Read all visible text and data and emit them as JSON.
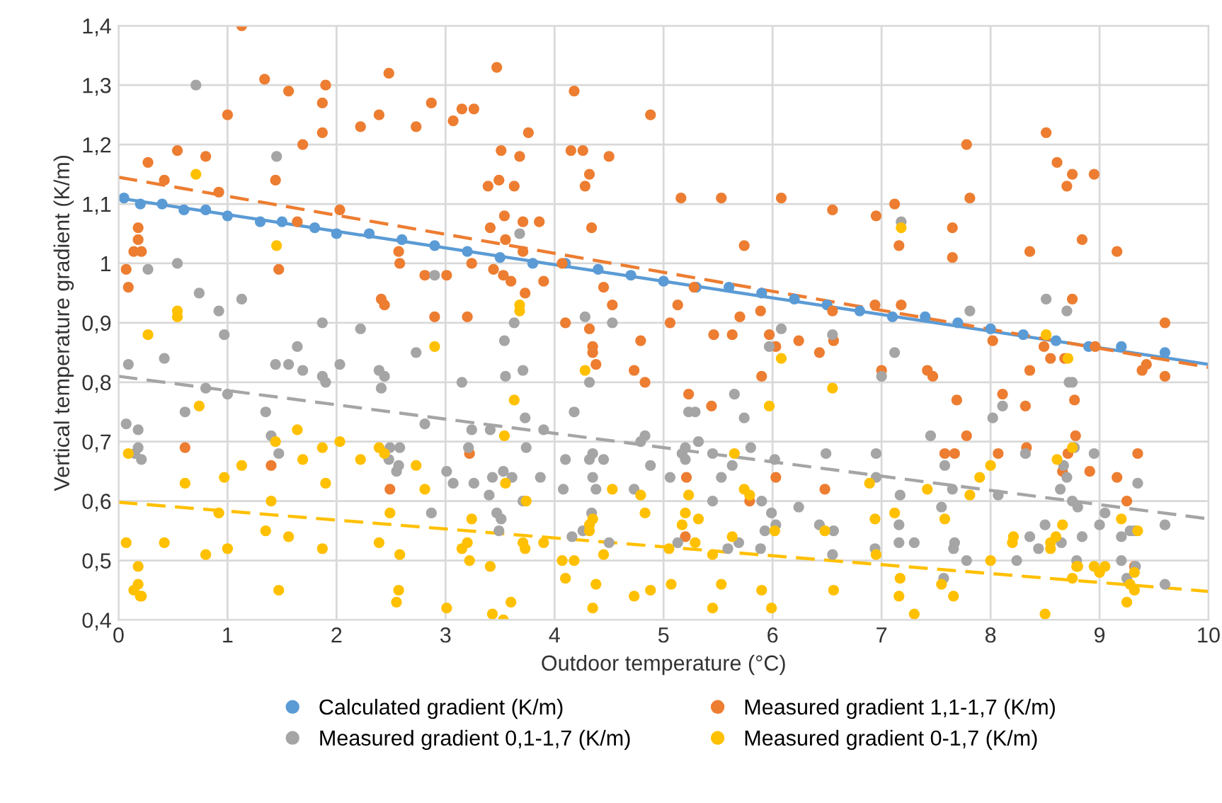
{
  "chart_data": {
    "type": "scatter",
    "xlabel": "Outdoor temperature (°C)",
    "ylabel": "Vertical temperature gradient (K/m)",
    "xlim": [
      0,
      10
    ],
    "ylim": [
      0.4,
      1.4
    ],
    "xticks": [
      0,
      1,
      2,
      3,
      4,
      5,
      6,
      7,
      8,
      9,
      10
    ],
    "yticks": [
      {
        "value": 0.4,
        "label": "0,4"
      },
      {
        "value": 0.5,
        "label": "0,5"
      },
      {
        "value": 0.6,
        "label": "0,6"
      },
      {
        "value": 0.7,
        "label": "0,7"
      },
      {
        "value": 0.8,
        "label": "0,8"
      },
      {
        "value": 0.9,
        "label": "0,9"
      },
      1,
      {
        "value": 1.1,
        "label": "1,1"
      },
      {
        "value": 1.2,
        "label": "1,2"
      },
      {
        "value": 1.3,
        "label": "1,3"
      },
      {
        "value": 1.4,
        "label": "1,4"
      }
    ],
    "grid": true,
    "legend": "bottom",
    "marker": "circle",
    "series": [
      {
        "name": "Calculated gradient (K/m)",
        "color": "#5b9bd5",
        "x": [
          0.05,
          0.2,
          0.4,
          0.6,
          0.8,
          1.0,
          1.3,
          1.5,
          1.8,
          2.0,
          2.3,
          2.6,
          2.9,
          3.2,
          3.5,
          3.8,
          4.1,
          4.4,
          4.7,
          5.0,
          5.3,
          5.6,
          5.9,
          6.2,
          6.5,
          6.8,
          7.1,
          7.4,
          7.7,
          8.0,
          8.3,
          8.6,
          8.9,
          9.2,
          9.6
        ],
        "values": [
          1.11,
          1.1,
          1.1,
          1.09,
          1.09,
          1.08,
          1.07,
          1.07,
          1.06,
          1.05,
          1.05,
          1.04,
          1.03,
          1.02,
          1.01,
          1.0,
          1.0,
          0.99,
          0.98,
          0.97,
          0.96,
          0.96,
          0.95,
          0.94,
          0.93,
          0.92,
          0.91,
          0.91,
          0.9,
          0.89,
          0.88,
          0.87,
          0.86,
          0.86,
          0.85
        ]
      },
      {
        "name": "Measured gradient 1,1-1,7 (K/m)",
        "color": "#ed7d31",
        "x": [
          1.13,
          1.34,
          1.56,
          1.9,
          1.87,
          1.0,
          2.48,
          3.47,
          4.18,
          4.88,
          2.87,
          3.15,
          3.26,
          3.07,
          2.39,
          2.22,
          2.73,
          1.87,
          1.69,
          3.76,
          3.51,
          3.68,
          4.15,
          4.26,
          4.5,
          4.32,
          4.28,
          0.54,
          0.8,
          0.27,
          0.42,
          1.44,
          0.92,
          3.39,
          3.49,
          3.63,
          2.03,
          3.54,
          3.71,
          3.86,
          4.34,
          3.41,
          3.55,
          0.18,
          0.18,
          0.14,
          0.21,
          2.57,
          2.58,
          1.47,
          0.07,
          0.09,
          3.24,
          3.44,
          3.53,
          3.6,
          3.9,
          3.73,
          2.81,
          3.01,
          2.41,
          2.44,
          4.45,
          4.53,
          4.07,
          1.64,
          3.71,
          5.16,
          5.53,
          6.08,
          6.55,
          6.95,
          7.12,
          7.78,
          7.81,
          7.65,
          7.65,
          7.16,
          5.74,
          8.51,
          8.61,
          8.75,
          8.7,
          8.95,
          8.84,
          9.16,
          8.36,
          8.75,
          5.28,
          5.13,
          5.7,
          5.89,
          6.94,
          7.18,
          6.55,
          5.06,
          5.46,
          5.63,
          5.97,
          6.24,
          6.43,
          6.56,
          6.03,
          5.9,
          5.23,
          5.44,
          5.21,
          5.79,
          6.48,
          6.03,
          5.2,
          7.0,
          7.42,
          7.47,
          7.69,
          8.11,
          8.32,
          7.78,
          7.58,
          7.67,
          8.07,
          8.33,
          8.02,
          8.36,
          8.55,
          8.68,
          8.77,
          8.78,
          8.71,
          8.66,
          8.91,
          9.16,
          9.39,
          9.43,
          9.6,
          9.6,
          9.35,
          9.25,
          9.32,
          8.49,
          8.96,
          2.9,
          3.2,
          4.1,
          4.32,
          4.35,
          4.35,
          4.38,
          4.79,
          4.73,
          4.83,
          0.61,
          1.4,
          2.49,
          3.22
        ],
        "values": [
          1.4,
          1.31,
          1.29,
          1.3,
          1.27,
          1.25,
          1.32,
          1.33,
          1.29,
          1.25,
          1.27,
          1.26,
          1.26,
          1.24,
          1.25,
          1.23,
          1.23,
          1.22,
          1.2,
          1.22,
          1.19,
          1.18,
          1.19,
          1.19,
          1.18,
          1.15,
          1.13,
          1.19,
          1.18,
          1.17,
          1.14,
          1.14,
          1.12,
          1.13,
          1.14,
          1.13,
          1.09,
          1.08,
          1.07,
          1.07,
          1.06,
          1.06,
          1.04,
          1.06,
          1.04,
          1.02,
          1.02,
          1.02,
          1.0,
          0.99,
          0.99,
          0.96,
          1.0,
          0.99,
          0.98,
          0.97,
          0.97,
          0.95,
          0.98,
          0.98,
          0.94,
          0.93,
          0.96,
          0.93,
          1.0,
          1.07,
          1.02,
          1.11,
          1.11,
          1.11,
          1.09,
          1.08,
          1.1,
          1.2,
          1.11,
          1.06,
          1.01,
          1.03,
          1.03,
          1.22,
          1.17,
          1.15,
          1.13,
          1.15,
          1.04,
          1.02,
          1.02,
          0.94,
          0.96,
          0.93,
          0.91,
          0.92,
          0.93,
          0.93,
          0.92,
          0.9,
          0.88,
          0.88,
          0.88,
          0.87,
          0.85,
          0.87,
          0.86,
          0.81,
          0.78,
          0.76,
          0.64,
          0.6,
          0.62,
          0.64,
          0.54,
          0.82,
          0.82,
          0.81,
          0.77,
          0.78,
          0.76,
          0.71,
          0.68,
          0.68,
          0.68,
          0.69,
          0.87,
          0.82,
          0.84,
          0.84,
          0.77,
          0.71,
          0.68,
          0.65,
          0.65,
          0.64,
          0.82,
          0.83,
          0.9,
          0.81,
          0.68,
          0.6,
          0.49,
          0.86,
          0.86,
          0.91,
          0.91,
          0.9,
          0.89,
          0.86,
          0.85,
          0.83,
          0.87,
          0.82,
          0.8,
          0.69,
          0.66,
          0.62,
          0.68
        ]
      },
      {
        "name": "Measured gradient 0,1-1,7 (K/m)",
        "color": "#a5a5a5",
        "x": [
          0.71,
          1.45,
          3.68,
          0.27,
          0.54,
          0.74,
          0.92,
          1.13,
          2.9,
          1.87,
          3.63,
          4.28,
          4.53,
          7.18,
          7.81,
          8.51,
          8.7,
          0.97,
          0.42,
          0.09,
          2.22,
          1.64,
          1.44,
          1.56,
          1.69,
          1.87,
          1.9,
          2.03,
          2.39,
          2.44,
          2.41,
          2.73,
          3.15,
          3.54,
          3.55,
          3.71,
          4.32,
          4.18,
          0.8,
          1.0,
          0.61,
          1.35,
          0.07,
          0.18,
          0.18,
          0.15,
          0.21,
          1.4,
          1.47,
          2.49,
          2.58,
          2.48,
          2.57,
          2.55,
          2.81,
          3.24,
          3.41,
          3.73,
          3.74,
          3.9,
          3.21,
          3.01,
          3.07,
          3.26,
          3.4,
          3.43,
          3.53,
          3.61,
          3.71,
          3.87,
          4.1,
          4.32,
          4.35,
          4.45,
          4.35,
          4.38,
          4.08,
          4.73,
          4.88,
          4.79,
          4.83,
          2.87,
          3.47,
          3.51,
          3.49,
          4.16,
          4.26,
          4.34,
          4.5,
          5.06,
          5.2,
          5.17,
          5.2,
          5.32,
          5.45,
          5.63,
          5.53,
          5.8,
          6.02,
          6.49,
          6.95,
          6.95,
          5.45,
          5.9,
          5.99,
          6.03,
          5.93,
          6.24,
          6.43,
          6.56,
          5.13,
          5.59,
          5.69,
          5.89,
          6.55,
          6.94,
          5.65,
          5.23,
          5.29,
          5.74,
          6.08,
          5.97,
          6.55,
          7.12,
          7.0,
          7.45,
          7.58,
          7.65,
          8.07,
          7.17,
          7.55,
          7.16,
          7.16,
          7.3,
          7.67,
          7.66,
          7.78,
          8.24,
          7.57,
          8.02,
          8.11,
          8.32,
          8.72,
          8.75,
          8.77,
          8.67,
          8.7,
          8.64,
          8.75,
          8.8,
          8.95,
          9.05,
          9.0,
          9.2,
          9.28,
          9.32,
          9.35,
          9.6,
          8.5,
          8.65,
          8.84,
          8.36,
          8.44,
          8.79,
          9.2,
          9.25,
          9.33,
          9.6
        ],
        "values": [
          1.3,
          1.18,
          1.05,
          0.99,
          1.0,
          0.95,
          0.92,
          0.94,
          0.98,
          0.9,
          0.9,
          0.91,
          0.9,
          1.07,
          0.92,
          0.94,
          0.92,
          0.88,
          0.84,
          0.83,
          0.89,
          0.86,
          0.83,
          0.83,
          0.82,
          0.81,
          0.8,
          0.83,
          0.82,
          0.81,
          0.79,
          0.85,
          0.8,
          0.87,
          0.81,
          0.82,
          0.8,
          0.75,
          0.79,
          0.78,
          0.75,
          0.75,
          0.73,
          0.72,
          0.69,
          0.68,
          0.67,
          0.71,
          0.68,
          0.69,
          0.69,
          0.67,
          0.66,
          0.65,
          0.73,
          0.72,
          0.72,
          0.74,
          0.69,
          0.72,
          0.69,
          0.65,
          0.63,
          0.63,
          0.61,
          0.64,
          0.65,
          0.64,
          0.6,
          0.64,
          0.67,
          0.67,
          0.68,
          0.67,
          0.64,
          0.62,
          0.62,
          0.62,
          0.66,
          0.7,
          0.71,
          0.58,
          0.58,
          0.57,
          0.55,
          0.54,
          0.55,
          0.58,
          0.53,
          0.64,
          0.69,
          0.68,
          0.67,
          0.7,
          0.68,
          0.66,
          0.64,
          0.69,
          0.67,
          0.68,
          0.68,
          0.64,
          0.6,
          0.6,
          0.58,
          0.56,
          0.55,
          0.59,
          0.56,
          0.55,
          0.53,
          0.52,
          0.53,
          0.52,
          0.51,
          0.52,
          0.78,
          0.75,
          0.75,
          0.74,
          0.89,
          0.86,
          0.88,
          0.85,
          0.81,
          0.71,
          0.66,
          0.62,
          0.61,
          0.61,
          0.59,
          0.56,
          0.53,
          0.53,
          0.53,
          0.52,
          0.5,
          0.5,
          0.47,
          0.74,
          0.76,
          0.68,
          0.8,
          0.8,
          0.69,
          0.66,
          0.64,
          0.62,
          0.6,
          0.59,
          0.68,
          0.58,
          0.56,
          0.54,
          0.55,
          0.55,
          0.63,
          0.56,
          0.56,
          0.53,
          0.54,
          0.54,
          0.52,
          0.5,
          0.5,
          0.47,
          0.49,
          0.46
        ]
      },
      {
        "name": "Measured gradient 0-1,7 (K/m)",
        "color": "#ffc000",
        "x": [
          0.71,
          1.45,
          0.54,
          3.68,
          7.18,
          0.54,
          0.27,
          2.9,
          3.68,
          4.28,
          3.63,
          0.74,
          1.64,
          2.03,
          1.44,
          1.87,
          2.39,
          2.44,
          2.22,
          1.69,
          2.73,
          3.54,
          0.09,
          1.13,
          0.97,
          0.61,
          1.9,
          2.81,
          3.55,
          1.4,
          0.92,
          2.49,
          3.74,
          3.24,
          4.53,
          4.79,
          4.83,
          4.35,
          4.32,
          4.32,
          1.35,
          1.56,
          0.07,
          0.42,
          0.8,
          1.0,
          1.87,
          2.39,
          2.58,
          3.2,
          3.15,
          3.22,
          3.71,
          3.73,
          3.9,
          4.07,
          4.18,
          4.45,
          3.41,
          0.18,
          0.18,
          0.14,
          0.21,
          0.2,
          1.47,
          2.57,
          2.55,
          3.01,
          3.43,
          3.53,
          3.6,
          4.1,
          4.38,
          4.35,
          4.73,
          4.88,
          6.08,
          6.55,
          5.97,
          5.65,
          5.74,
          5.79,
          5.23,
          5.2,
          5.17,
          5.32,
          5.29,
          5.63,
          6.02,
          6.48,
          5.05,
          5.45,
          6.94,
          6.89,
          7.12,
          6.95,
          7.42,
          7.58,
          7.81,
          7.9,
          8.0,
          8.0,
          7.17,
          7.16,
          7.3,
          7.55,
          7.66,
          5.07,
          5.53,
          5.45,
          5.9,
          5.99,
          6.56,
          8.51,
          8.71,
          8.75,
          8.61,
          8.66,
          8.55,
          8.55,
          8.6,
          8.21,
          8.2,
          8.79,
          8.8,
          8.95,
          9.05,
          9.0,
          8.75,
          9.2,
          9.35,
          9.32,
          9.28,
          9.32,
          9.25,
          8.5
        ],
        "values": [
          1.15,
          1.03,
          0.92,
          0.93,
          1.06,
          0.91,
          0.88,
          0.86,
          0.92,
          0.82,
          0.77,
          0.76,
          0.72,
          0.7,
          0.7,
          0.69,
          0.69,
          0.68,
          0.67,
          0.67,
          0.66,
          0.71,
          0.68,
          0.66,
          0.64,
          0.63,
          0.63,
          0.62,
          0.63,
          0.6,
          0.58,
          0.58,
          0.6,
          0.57,
          0.62,
          0.61,
          0.58,
          0.57,
          0.56,
          0.55,
          0.55,
          0.54,
          0.53,
          0.53,
          0.51,
          0.52,
          0.52,
          0.53,
          0.51,
          0.53,
          0.52,
          0.5,
          0.53,
          0.52,
          0.53,
          0.5,
          0.5,
          0.51,
          0.49,
          0.49,
          0.46,
          0.45,
          0.44,
          0.44,
          0.45,
          0.45,
          0.43,
          0.42,
          0.41,
          0.4,
          0.43,
          0.47,
          0.46,
          0.42,
          0.44,
          0.45,
          0.84,
          0.79,
          0.76,
          0.68,
          0.62,
          0.61,
          0.61,
          0.58,
          0.56,
          0.57,
          0.53,
          0.54,
          0.55,
          0.55,
          0.52,
          0.51,
          0.57,
          0.63,
          0.58,
          0.51,
          0.62,
          0.57,
          0.61,
          0.64,
          0.66,
          0.5,
          0.47,
          0.44,
          0.41,
          0.46,
          0.44,
          0.46,
          0.46,
          0.42,
          0.45,
          0.42,
          0.45,
          0.88,
          0.84,
          0.69,
          0.67,
          0.56,
          0.53,
          0.52,
          0.54,
          0.54,
          0.53,
          0.49,
          0.49,
          0.49,
          0.49,
          0.48,
          0.47,
          0.57,
          0.55,
          0.48,
          0.46,
          0.45,
          0.43,
          0.41
        ]
      },
      {
        "type": "line",
        "color": "#5b9bd5",
        "line_style": "solid",
        "marker": "none",
        "x": [
          0,
          10
        ],
        "values": [
          1.11,
          0.83
        ]
      },
      {
        "type": "line",
        "color": "#ed7d31",
        "line_style": "dashed",
        "marker": "none",
        "x": [
          0,
          10
        ],
        "values": [
          1.145,
          0.825
        ]
      },
      {
        "type": "line",
        "color": "#a5a5a5",
        "line_style": "dashed",
        "marker": "none",
        "x": [
          0,
          10
        ],
        "values": [
          0.81,
          0.57
        ]
      },
      {
        "type": "line",
        "color": "#ffc000",
        "line_style": "dashed",
        "marker": "none",
        "x": [
          0,
          10
        ],
        "values": [
          0.598,
          0.448
        ]
      }
    ]
  }
}
